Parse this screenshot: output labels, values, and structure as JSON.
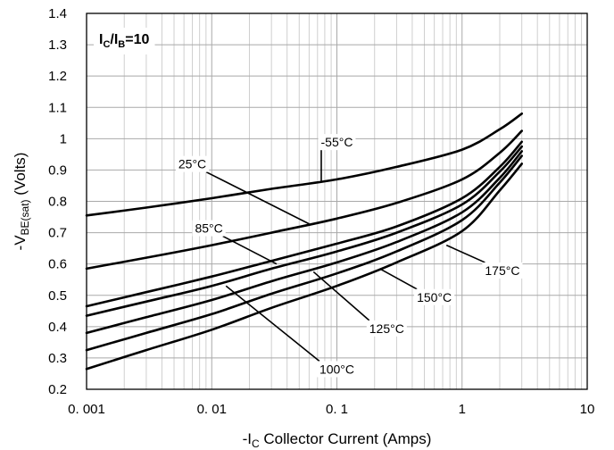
{
  "chart_data": {
    "type": "line",
    "xscale": "log",
    "xlim": [
      0.001,
      10
    ],
    "ylim": [
      0.2,
      1.4
    ],
    "xticks": [
      {
        "value": 0.001,
        "label": "0. 001"
      },
      {
        "value": 0.01,
        "label": "0. 01"
      },
      {
        "value": 0.1,
        "label": "0. 1"
      },
      {
        "value": 1,
        "label": "1"
      },
      {
        "value": 10,
        "label": "10"
      }
    ],
    "yticks": [
      {
        "value": 0.2,
        "label": "0.2"
      },
      {
        "value": 0.3,
        "label": "0.3"
      },
      {
        "value": 0.4,
        "label": "0.4"
      },
      {
        "value": 0.5,
        "label": "0.5"
      },
      {
        "value": 0.6,
        "label": "0.6"
      },
      {
        "value": 0.7,
        "label": "0.7"
      },
      {
        "value": 0.8,
        "label": "0.8"
      },
      {
        "value": 0.9,
        "label": "0.9"
      },
      {
        "value": 1.0,
        "label": "1"
      },
      {
        "value": 1.1,
        "label": "1.1"
      },
      {
        "value": 1.2,
        "label": "1.2"
      },
      {
        "value": 1.3,
        "label": "1.3"
      },
      {
        "value": 1.4,
        "label": "1.4"
      }
    ],
    "grid": true,
    "condition": {
      "main": "I",
      "sub1": "C",
      "slash": "/I",
      "sub2": "B",
      "rest": "=10"
    },
    "xlabel": {
      "prefix": "-I",
      "sub": "C",
      "rest": " Collector Current (Amps)"
    },
    "ylabel": {
      "prefix": "-V",
      "sub": "BE(sat)",
      "rest": " (Volts)"
    },
    "series": [
      {
        "name": "-55°C",
        "x": [
          0.001,
          0.003,
          0.01,
          0.03,
          0.1,
          0.3,
          1,
          2,
          3
        ],
        "y": [
          0.755,
          0.78,
          0.81,
          0.84,
          0.87,
          0.91,
          0.965,
          1.03,
          1.08
        ]
      },
      {
        "name": "25°C",
        "x": [
          0.001,
          0.003,
          0.01,
          0.03,
          0.1,
          0.3,
          1,
          2,
          3
        ],
        "y": [
          0.585,
          0.62,
          0.66,
          0.7,
          0.745,
          0.795,
          0.87,
          0.955,
          1.025
        ]
      },
      {
        "name": "85°C",
        "x": [
          0.001,
          0.003,
          0.01,
          0.03,
          0.1,
          0.3,
          1,
          2,
          3
        ],
        "y": [
          0.465,
          0.51,
          0.56,
          0.61,
          0.665,
          0.72,
          0.81,
          0.91,
          0.99
        ]
      },
      {
        "name": "100°C",
        "x": [
          0.001,
          0.003,
          0.01,
          0.03,
          0.1,
          0.3,
          1,
          2,
          3
        ],
        "y": [
          0.435,
          0.48,
          0.53,
          0.585,
          0.64,
          0.7,
          0.79,
          0.895,
          0.975
        ]
      },
      {
        "name": "125°C",
        "x": [
          0.001,
          0.003,
          0.01,
          0.03,
          0.1,
          0.3,
          1,
          2,
          3
        ],
        "y": [
          0.38,
          0.43,
          0.485,
          0.545,
          0.605,
          0.67,
          0.765,
          0.875,
          0.96
        ]
      },
      {
        "name": "150°C",
        "x": [
          0.001,
          0.003,
          0.01,
          0.03,
          0.1,
          0.3,
          1,
          2,
          3
        ],
        "y": [
          0.325,
          0.38,
          0.44,
          0.505,
          0.57,
          0.64,
          0.74,
          0.86,
          0.945
        ]
      },
      {
        "name": "175°C",
        "x": [
          0.001,
          0.003,
          0.01,
          0.03,
          0.1,
          0.3,
          1,
          2,
          3
        ],
        "y": [
          0.265,
          0.325,
          0.39,
          0.46,
          0.53,
          0.605,
          0.705,
          0.835,
          0.92
        ]
      }
    ],
    "annotations": [
      {
        "series": "-55°C",
        "text": "-55°C",
        "label_at": [
          0.1,
          0.975
        ],
        "point_at": [
          0.075,
          0.862
        ]
      },
      {
        "series": "25°C",
        "text": "25°C",
        "label_at": [
          0.007,
          0.905
        ],
        "point_at": [
          0.06,
          0.728
        ]
      },
      {
        "series": "85°C",
        "text": "85°C",
        "label_at": [
          0.0095,
          0.7
        ],
        "point_at": [
          0.033,
          0.6
        ]
      },
      {
        "series": "100°C",
        "text": "100°C",
        "label_at": [
          0.1,
          0.25
        ],
        "point_at": [
          0.013,
          0.53
        ]
      },
      {
        "series": "125°C",
        "text": "125°C",
        "label_at": [
          0.25,
          0.38
        ],
        "point_at": [
          0.065,
          0.575
        ]
      },
      {
        "series": "150°C",
        "text": "150°C",
        "label_at": [
          0.6,
          0.48
        ],
        "point_at": [
          0.22,
          0.585
        ]
      },
      {
        "series": "175°C",
        "text": "175°C",
        "label_at": [
          2.1,
          0.565
        ],
        "point_at": [
          0.75,
          0.66
        ]
      }
    ]
  }
}
